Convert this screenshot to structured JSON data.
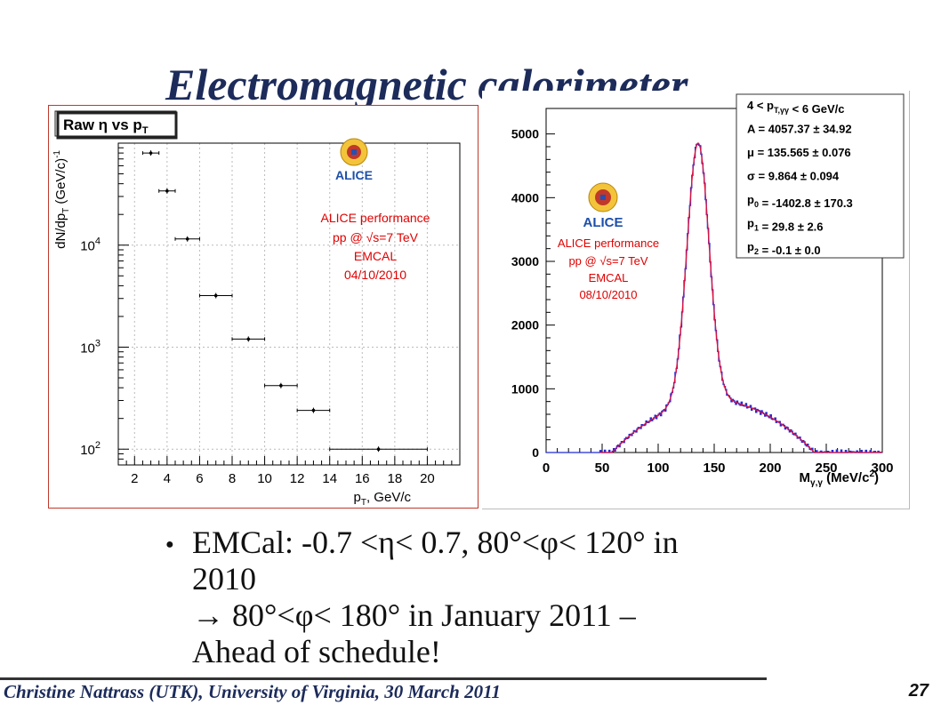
{
  "slide": {
    "title": "Electromagnetic calorimeter",
    "bullet_lines": [
      "EMCal:  -0.7 <η< 0.7, 80°<φ< 120° in",
      "2010",
      "→ 80°<φ< 180° in  January 2011 –",
      "Ahead of schedule!"
    ],
    "footer": "Christine Nattrass (UTK), University of Virginia,  30 March 2011",
    "page_number": "27"
  },
  "colors": {
    "frame": "#c0392b",
    "title": "#1c2b5a",
    "alice_text": "#e00000",
    "hist": "#1e2ad8",
    "fit": "#e0103a"
  },
  "chart_data": [
    {
      "type": "scatter",
      "title": "Raw η vs p",
      "title_sub": "T",
      "xlabel": "p",
      "xlabel_sub": "T",
      "xlabel_tail": ", GeV/c",
      "ylabel": "dN/dp",
      "ylabel_sub": "T",
      "ylabel_tail": " (GeV/c)",
      "ylabel_sup": "-1",
      "xlim": [
        1,
        22
      ],
      "ylim": [
        70,
        100000
      ],
      "log_y": true,
      "grid": true,
      "x_ticks": [
        2,
        4,
        6,
        8,
        10,
        12,
        14,
        16,
        18,
        20
      ],
      "x_tick_labels": [
        "2",
        "4",
        "6",
        "8",
        "10",
        "12",
        "14",
        "16",
        "18",
        "20"
      ],
      "y_ticks": [
        100,
        1000,
        10000
      ],
      "y_tick_labels": [
        "10",
        "10",
        "10"
      ],
      "y_tick_exponents": [
        "2",
        "3",
        "4"
      ],
      "points": [
        {
          "x": 3.0,
          "xerr": 0.5,
          "y": 80000
        },
        {
          "x": 4.0,
          "xerr": 0.5,
          "y": 34000
        },
        {
          "x": 5.25,
          "xerr": 0.75,
          "y": 11500
        },
        {
          "x": 7.0,
          "xerr": 1.0,
          "y": 3200
        },
        {
          "x": 9.0,
          "xerr": 1.0,
          "y": 1200
        },
        {
          "x": 11.0,
          "xerr": 1.0,
          "y": 420
        },
        {
          "x": 13.0,
          "xerr": 1.0,
          "y": 240
        },
        {
          "x": 17.0,
          "xerr": 3.0,
          "y": 100
        }
      ],
      "logo_text": "ALICE",
      "annotation_lines": [
        "ALICE performance",
        "pp @ √s=7 TeV",
        "EMCAL",
        "04/10/2010"
      ]
    },
    {
      "type": "line",
      "xlabel": "M",
      "xlabel_sub": "γ,γ",
      "xlabel_tail": " (MeV/c",
      "xlabel_sup": "2",
      "xlabel_end": ")",
      "xlim": [
        0,
        300
      ],
      "ylim": [
        0,
        5400
      ],
      "x_ticks": [
        0,
        50,
        100,
        150,
        200,
        250,
        300
      ],
      "x_tick_labels": [
        "0",
        "50",
        "100",
        "150",
        "200",
        "250",
        "300"
      ],
      "y_ticks": [
        0,
        1000,
        2000,
        3000,
        4000,
        5000
      ],
      "y_tick_labels": [
        "0",
        "1000",
        "2000",
        "3000",
        "4000",
        "5000"
      ],
      "fit": {
        "A": 4057.37,
        "mu": 135.565,
        "sigma": 9.864,
        "p0": -1402.8,
        "p1": 29.8,
        "p2": -0.1
      },
      "stats_lines": [
        "4 < p_{T,γγ} < 6 GeV/c",
        "A = 4057.37 ± 34.92",
        "μ = 135.565 ± 0.076",
        "σ = 9.864 ± 0.094",
        "p_{0} = -1402.8 ± 170.3",
        "p_{1} = 29.8 ± 2.6",
        "p_{2} = -0.1 ± 0.0"
      ],
      "logo_text": "ALICE",
      "annotation_lines": [
        "ALICE performance",
        "pp @ √s=7 TeV",
        "EMCAL",
        "08/10/2010"
      ]
    }
  ]
}
